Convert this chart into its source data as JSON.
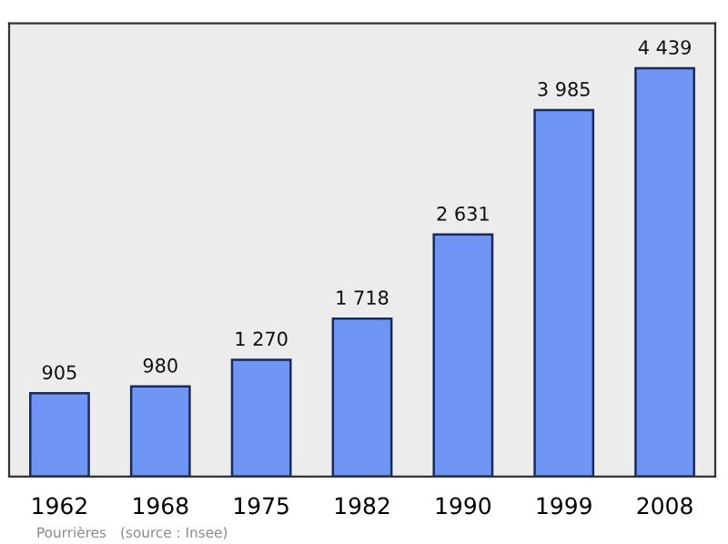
{
  "chart_data": {
    "type": "bar",
    "categories": [
      "1962",
      "1968",
      "1975",
      "1982",
      "1990",
      "1999",
      "2008"
    ],
    "values": [
      905,
      980,
      1270,
      1718,
      2631,
      3985,
      4439
    ],
    "value_labels": [
      "905",
      "980",
      "1 270",
      "1 718",
      "2 631",
      "3 985",
      "4 439"
    ],
    "color": "#6f96f5",
    "grid": false,
    "annotations": [
      "Pourrières",
      "(source : Insee)"
    ]
  }
}
